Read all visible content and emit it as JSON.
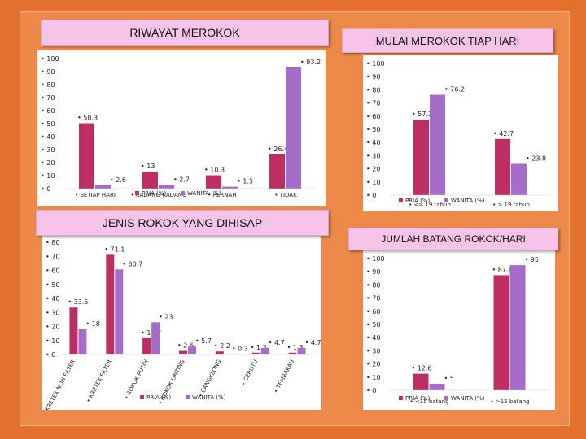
{
  "colors": {
    "pria": "#bd2f63",
    "wanita": "#a66cc9",
    "background": "#e3702c"
  },
  "chart_data": [
    {
      "id": "riwayat",
      "type": "bar",
      "title": "RIWAYAT MEROKOK",
      "ylim": [
        0,
        100
      ],
      "yticks": [
        0,
        10,
        20,
        30,
        40,
        50,
        60,
        70,
        80,
        90,
        100
      ],
      "categories": [
        "SETIAP HARI",
        "KADANG-KADANG",
        "PERNAH",
        "TIDAK"
      ],
      "series": [
        {
          "name": "PRIA (%)",
          "values": [
            50.3,
            13,
            10.3,
            26.4
          ],
          "labels": [
            "50.3",
            "13",
            "10.3",
            "26.4"
          ]
        },
        {
          "name": "WANITA (%)",
          "values": [
            2.6,
            2.7,
            1.5,
            93.2
          ],
          "labels": [
            "2.6",
            "2.7",
            "1.5",
            "93.2"
          ]
        }
      ]
    },
    {
      "id": "mulai",
      "type": "bar",
      "title": "MULAI MEROKOK TIAP HARI",
      "ylim": [
        0,
        100
      ],
      "yticks": [
        0,
        10,
        20,
        30,
        40,
        50,
        60,
        70,
        80,
        90,
        100
      ],
      "categories": [
        "<= 19 tahun",
        "> 19 tahun"
      ],
      "series": [
        {
          "name": "PRIA (%)",
          "values": [
            57.3,
            42.7
          ],
          "labels": [
            "57.3",
            "42.7"
          ]
        },
        {
          "name": "WANITA (%)",
          "values": [
            76.2,
            23.8
          ],
          "labels": [
            "76.2",
            "23.8"
          ]
        }
      ]
    },
    {
      "id": "jenis",
      "type": "bar",
      "title": "JENIS ROKOK YANG DIHISAP",
      "ylim": [
        0,
        80
      ],
      "yticks": [
        0,
        10,
        20,
        30,
        40,
        50,
        60,
        70,
        80
      ],
      "categories": [
        "KRETEK NON FILTER",
        "KRETEK FILTER",
        "ROKOK PUTIH",
        "ROKOK LINTING",
        "CANGKLONG",
        "CERUTU",
        "TEMBAKAU"
      ],
      "series": [
        {
          "name": "PRIA (%)",
          "values": [
            33.5,
            71.1,
            11.7,
            2.6,
            2.2,
            1.3,
            1.3
          ],
          "labels": [
            "33.5",
            "71.1",
            "11.7",
            "2.6",
            "2.2",
            "1.3",
            "1.3"
          ]
        },
        {
          "name": "WANITA (%)",
          "values": [
            18,
            60.7,
            23,
            5.7,
            0.3,
            4.7,
            4.7
          ],
          "labels": [
            "18",
            "60.7",
            "23",
            "5.7",
            "0.3",
            "4.7",
            "4.7"
          ]
        }
      ]
    },
    {
      "id": "jumlah",
      "type": "bar",
      "title": "JUMLAH BATANG ROKOK/HARI",
      "ylim": [
        0,
        100
      ],
      "yticks": [
        0,
        10,
        20,
        30,
        40,
        50,
        60,
        70,
        80,
        90,
        100
      ],
      "categories": [
        "<15 batang",
        ">15 batang"
      ],
      "series": [
        {
          "name": "PRIA (%)",
          "values": [
            12.6,
            87.4
          ],
          "labels": [
            "12.6",
            "87.4"
          ]
        },
        {
          "name": "WANITA (%)",
          "values": [
            5,
            95
          ],
          "labels": [
            "5",
            "95"
          ]
        }
      ]
    }
  ]
}
